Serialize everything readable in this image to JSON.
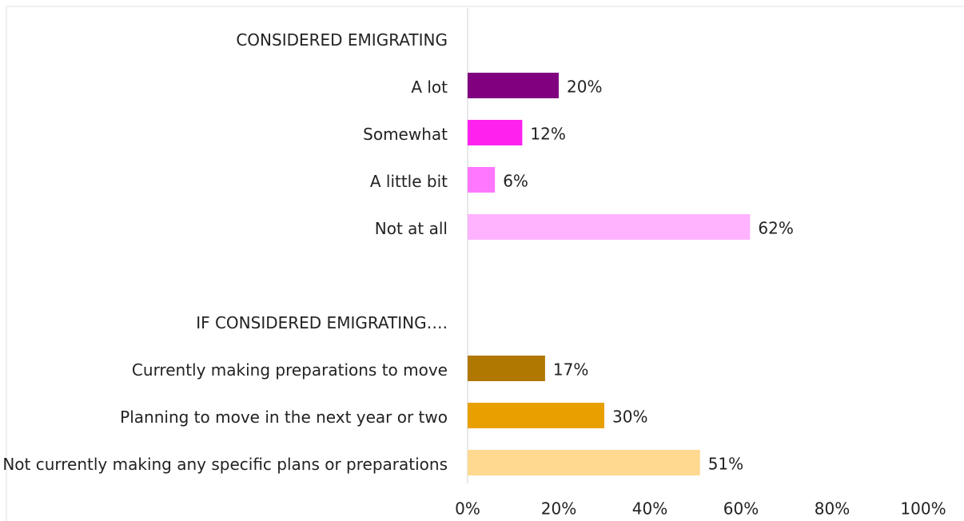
{
  "chart_data": {
    "type": "hbar",
    "categories": [
      "CONSIDERED EMIGRATING",
      "A lot",
      "Somewhat",
      "A little bit",
      "Not at all",
      null,
      "IF CONSIDERED EMIGRATING….",
      "Currently making preparations to move",
      "Planning to move in the next year or two",
      "Not currently making any specific plans or preparations"
    ],
    "values": [
      null,
      20,
      12,
      6,
      62,
      null,
      null,
      17,
      30,
      51
    ],
    "value_labels": [
      null,
      "20%",
      "12%",
      "6%",
      "62%",
      null,
      null,
      "17%",
      "30%",
      "51%"
    ],
    "colors": [
      null,
      "#800080",
      "#ff22ee",
      "#ff77ff",
      "#ffb3ff",
      null,
      null,
      "#b07800",
      "#e8a000",
      "#ffd990"
    ],
    "xlim": [
      0,
      100
    ],
    "xticks": [
      {
        "value": 0,
        "label": "0%"
      },
      {
        "value": 20,
        "label": "20%"
      },
      {
        "value": 40,
        "label": "40%"
      },
      {
        "value": 60,
        "label": "60%"
      },
      {
        "value": 80,
        "label": "80%"
      },
      {
        "value": 100,
        "label": "100%"
      }
    ],
    "grid": false
  }
}
